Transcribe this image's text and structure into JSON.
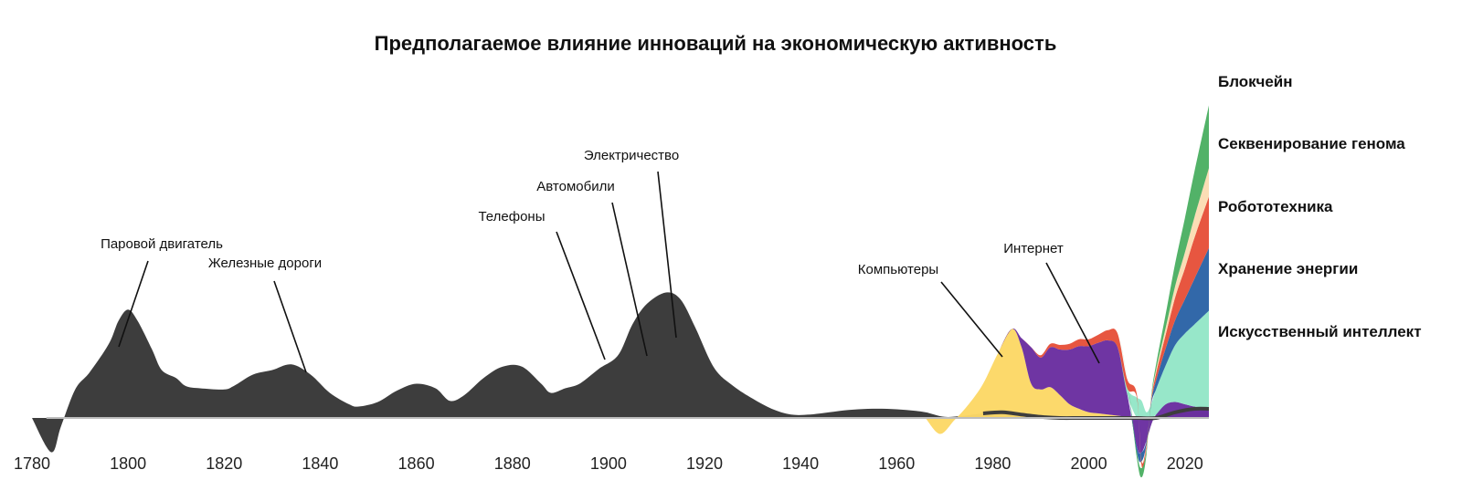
{
  "chart_data": {
    "type": "area",
    "title": "Предполагаемое влияние инноваций на экономическую активность",
    "xlabel": "",
    "ylabel": "",
    "xlim": [
      1780,
      2025
    ],
    "x_ticks": [
      1780,
      1800,
      1820,
      1840,
      1860,
      1880,
      1900,
      1920,
      1940,
      1960,
      1980,
      2000,
      2020
    ],
    "grid": false,
    "legend_position": "right",
    "colors": {
      "historical": "#3d3d3d",
      "computers": "#fcd866",
      "internet": "#6a2ea0",
      "ai": "#94e6c7",
      "energy": "#2b63a6",
      "robotics": "#e6513a",
      "genome": "#fbdcb3",
      "blockchain": "#4caf63",
      "baseline": "#bdbdbd"
    },
    "series": [
      {
        "key": "historical",
        "x": [
          1780,
          1784,
          1786,
          1789,
          1792,
          1796,
          1798,
          1800,
          1802,
          1805,
          1807,
          1810,
          1812,
          1815,
          1820,
          1822,
          1826,
          1830,
          1834,
          1838,
          1842,
          1846,
          1848,
          1852,
          1856,
          1860,
          1864,
          1867,
          1870,
          1874,
          1878,
          1882,
          1886,
          1888,
          1891,
          1894,
          1898,
          1902,
          1905,
          1908,
          1912,
          1915,
          1918,
          1922,
          1926,
          1930,
          1934,
          1938,
          1942,
          1946,
          1950,
          1954,
          1958,
          1962,
          1966,
          1970,
          1974,
          1978,
          1982,
          1986,
          1990,
          1994,
          1998,
          2002,
          2006,
          2010,
          2014,
          2018,
          2022,
          2025
        ],
        "values": [
          0,
          -30,
          -8,
          25,
          40,
          65,
          85,
          95,
          85,
          60,
          42,
          35,
          28,
          26,
          25,
          28,
          38,
          42,
          47,
          38,
          22,
          12,
          10,
          14,
          24,
          30,
          26,
          15,
          20,
          35,
          45,
          45,
          30,
          22,
          26,
          30,
          43,
          55,
          82,
          100,
          110,
          104,
          80,
          44,
          28,
          17,
          8,
          3,
          3,
          5,
          7,
          8,
          8,
          7,
          5,
          1,
          2,
          4,
          5,
          3,
          1,
          0,
          0,
          0,
          0,
          0,
          0,
          5,
          8,
          8
        ]
      }
    ],
    "stacked_series": {
      "x": [
        1966,
        1969,
        1972,
        1975,
        1978,
        1981,
        1984,
        1986,
        1988,
        1990,
        1992,
        1994,
        1996,
        1998,
        2000,
        2002,
        2004,
        2006,
        2008,
        2010,
        2011,
        2012,
        2013,
        2014,
        2016,
        2018,
        2020,
        2022,
        2025
      ],
      "layers": [
        {
          "name": "Компьютеры",
          "values": [
            0,
            -14,
            -2,
            12,
            30,
            56,
            78,
            62,
            30,
            25,
            27,
            20,
            12,
            8,
            5,
            4,
            3,
            2,
            1,
            0,
            0,
            0,
            0,
            0,
            0,
            0,
            0,
            0,
            0
          ]
        },
        {
          "name": "Интернет",
          "values": [
            0,
            0,
            0,
            0,
            0,
            0,
            0,
            8,
            32,
            28,
            35,
            40,
            48,
            55,
            58,
            62,
            65,
            60,
            20,
            -25,
            -30,
            -20,
            -6,
            3,
            12,
            14,
            12,
            10,
            8
          ]
        },
        {
          "name": "Искусственный интеллект",
          "values": [
            0,
            0,
            0,
            0,
            0,
            0,
            0,
            0,
            0,
            0,
            0,
            0,
            0,
            0,
            0,
            0,
            0,
            0,
            5,
            18,
            15,
            5,
            12,
            22,
            34,
            50,
            62,
            72,
            86
          ]
        },
        {
          "name": "Хранение энергии",
          "values": [
            0,
            0,
            0,
            0,
            0,
            0,
            0,
            0,
            0,
            0,
            0,
            0,
            0,
            0,
            0,
            0,
            0,
            0,
            0,
            -5,
            -8,
            -3,
            2,
            8,
            15,
            22,
            30,
            40,
            55
          ]
        },
        {
          "name": "Робототехника",
          "values": [
            0,
            0,
            0,
            0,
            0,
            0,
            0,
            0,
            0,
            2,
            3,
            4,
            5,
            6,
            6,
            7,
            9,
            12,
            8,
            3,
            -4,
            -3,
            2,
            6,
            12,
            20,
            27,
            36,
            45
          ]
        },
        {
          "name": "Секвенирование генома",
          "values": [
            0,
            0,
            0,
            0,
            0,
            0,
            0,
            0,
            0,
            0,
            0,
            0,
            0,
            0,
            0,
            0,
            0,
            0,
            0,
            0,
            -2,
            -2,
            1,
            3,
            6,
            10,
            14,
            18,
            25
          ]
        },
        {
          "name": "Блокчейн",
          "values": [
            0,
            0,
            0,
            0,
            0,
            0,
            0,
            0,
            0,
            0,
            0,
            0,
            0,
            0,
            0,
            0,
            0,
            0,
            0,
            -5,
            -8,
            -4,
            2,
            5,
            12,
            20,
            30,
            40,
            55
          ]
        }
      ]
    },
    "annotations": [
      {
        "text": "Паровой двигатель",
        "year": 1799
      },
      {
        "text": "Железные дороги",
        "year": 1836
      },
      {
        "text": "Телефоны",
        "year": 1900
      },
      {
        "text": "Автомобили",
        "year": 1909
      },
      {
        "text": "Электричество",
        "year": 1915
      },
      {
        "text": "Компьютеры",
        "year": 1984
      },
      {
        "text": "Интернет",
        "year": 2003
      }
    ],
    "legend": [
      {
        "text": "Блокчейн"
      },
      {
        "text": "Секвенирование генома"
      },
      {
        "text": "Робототехника"
      },
      {
        "text": "Хранение энергии"
      },
      {
        "text": "Искусственный интеллект"
      }
    ]
  }
}
